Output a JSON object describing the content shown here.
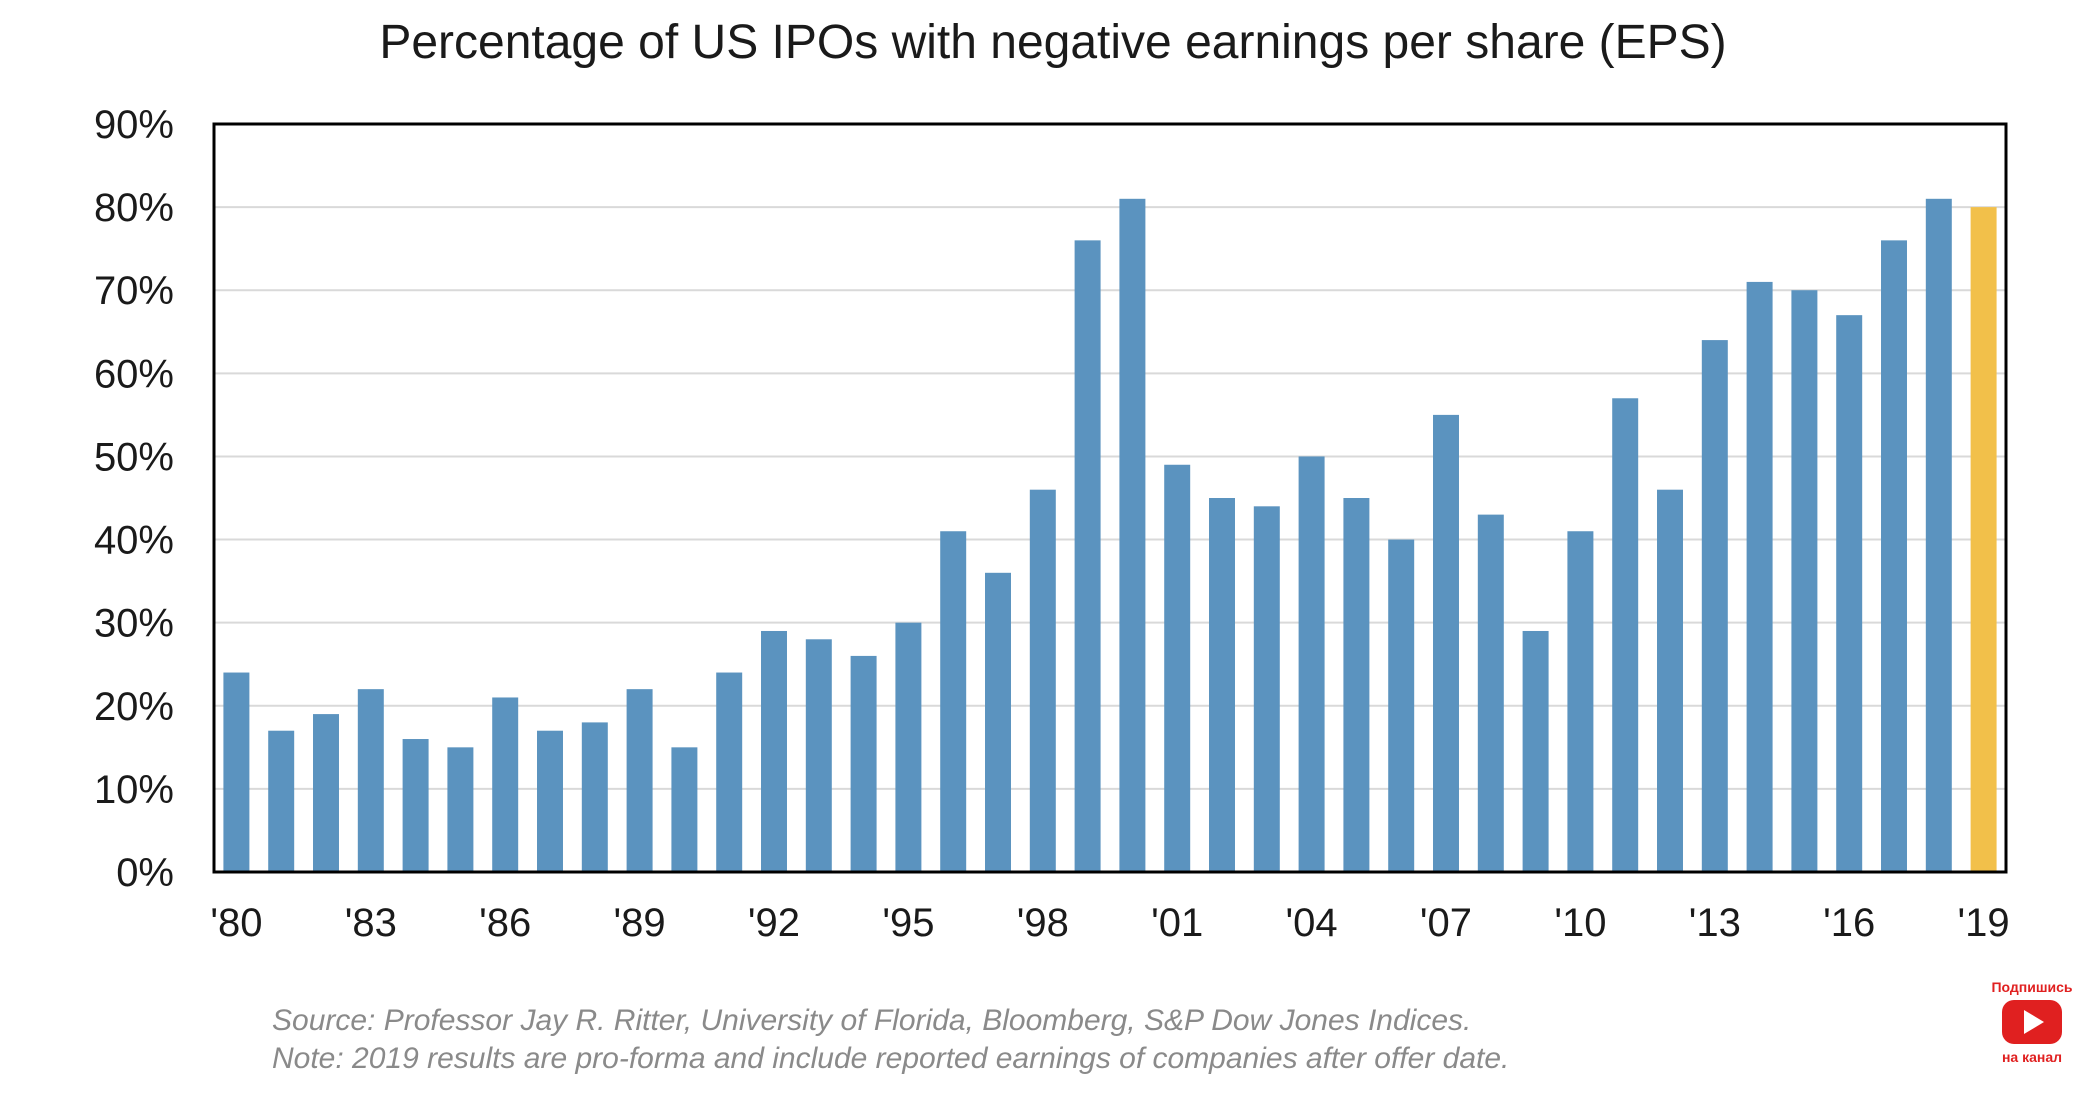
{
  "chart_data": {
    "type": "bar",
    "title": "Percentage of US IPOs with negative earnings per share (EPS)",
    "xlabel": "",
    "ylabel": "",
    "ylim": [
      0,
      90
    ],
    "yticks": [
      "0%",
      "10%",
      "20%",
      "30%",
      "40%",
      "50%",
      "60%",
      "70%",
      "80%",
      "90%"
    ],
    "xtick_labels": [
      "'80",
      "'83",
      "'86",
      "'89",
      "'92",
      "'95",
      "'98",
      "'01",
      "'04",
      "'07",
      "'10",
      "'13",
      "'16",
      "'19"
    ],
    "grid": true,
    "categories": [
      "1980",
      "1981",
      "1982",
      "1983",
      "1984",
      "1985",
      "1986",
      "1987",
      "1988",
      "1989",
      "1990",
      "1991",
      "1992",
      "1993",
      "1994",
      "1995",
      "1996",
      "1997",
      "1998",
      "1999",
      "2000",
      "2001",
      "2002",
      "2003",
      "2004",
      "2005",
      "2006",
      "2007",
      "2008",
      "2009",
      "2010",
      "2011",
      "2012",
      "2013",
      "2014",
      "2015",
      "2016",
      "2017",
      "2018",
      "2019"
    ],
    "values": [
      24,
      17,
      19,
      22,
      16,
      15,
      21,
      17,
      18,
      22,
      15,
      24,
      29,
      28,
      26,
      30,
      41,
      36,
      46,
      76,
      81,
      49,
      45,
      44,
      50,
      45,
      40,
      55,
      43,
      29,
      41,
      57,
      46,
      64,
      71,
      70,
      67,
      76,
      81,
      80
    ],
    "colors": {
      "bar": "#5b93bf",
      "highlight": "#f2c04a",
      "grid": "#d9d9d9",
      "axis": "#000000"
    },
    "highlight_category": "2019"
  },
  "notes": {
    "source": "Source: Professor Jay R. Ritter, University of Florida, Bloomberg, S&P Dow Jones Indices.",
    "note": "Note: 2019 results are pro-forma and include reported earnings of companies after offer date."
  },
  "subscribe_badge": {
    "top_text": "Подпишись",
    "bottom_text": "на канал",
    "icon": "youtube-play-icon",
    "color": "#e02020"
  }
}
